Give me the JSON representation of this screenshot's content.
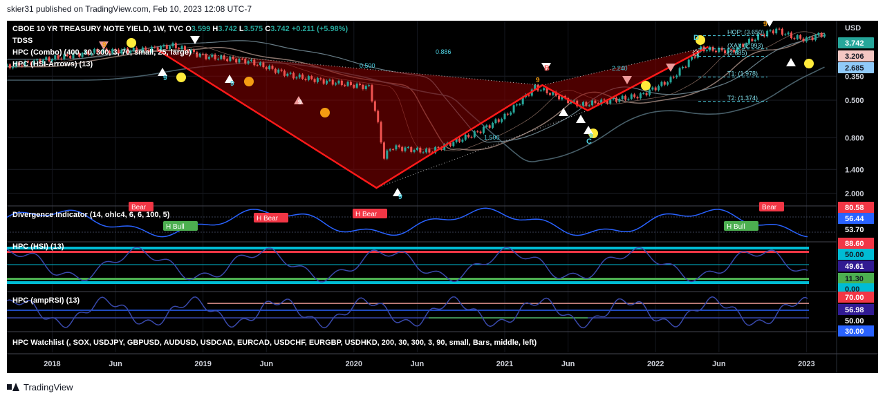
{
  "header": {
    "published": "skier31 published on TradingView.com, Feb 10, 2023 12:08 UTC-7"
  },
  "footer": {
    "brand": "TradingView"
  },
  "main_pane": {
    "title_prefix": "CBOE 10 YR TREASURY NOTE YIELD, 1W, TVC",
    "ohlc": [
      {
        "k": "O",
        "v": "3.599"
      },
      {
        "k": "H",
        "v": "3.742"
      },
      {
        "k": "L",
        "v": "3.575"
      },
      {
        "k": "C",
        "v": "3.742"
      }
    ],
    "change": "+0.211 (+5.98%)",
    "indicators": [
      "TDSS",
      "HPC (Combo) (400, 30, 300, 3, 70, small, 25, large)",
      "HPC (HSI-Arrows) (13)"
    ],
    "currency": "USD",
    "price_ticks": [
      "2.000",
      "1.400",
      "0.800",
      "0.500",
      "0.350"
    ],
    "badges": [
      {
        "text": "3.742",
        "bg": "#26a69a",
        "fg": "#ffffff"
      },
      {
        "text": "3.206",
        "bg": "#f4c7c3",
        "fg": "#131722"
      },
      {
        "text": "2.685",
        "bg": "#90caf9",
        "fg": "#131722"
      }
    ],
    "fib_labels": [
      {
        "text": "0.886"
      },
      {
        "text": "0.500"
      },
      {
        "text": "2.240"
      },
      {
        "text": "1.500"
      }
    ],
    "targets": [
      "HOP: (3.650)",
      "(XA): (2.993)",
      "(2.685)",
      "T1: (1.978)",
      "T2: (1.374)"
    ],
    "point_labels": [
      "B",
      "D",
      "C"
    ],
    "count_label": "9"
  },
  "divergence_pane": {
    "title": "Divergence Indicator (14, ohlc4, 6, 6, 100, 5)",
    "badges": [
      {
        "text": "80.58",
        "bg": "#f23645",
        "fg": "#ffffff"
      },
      {
        "text": "56.44",
        "bg": "#2962ff",
        "fg": "#ffffff"
      },
      {
        "text": "53.70",
        "bg": "#000000",
        "fg": "#ffffff"
      }
    ],
    "labels": [
      {
        "text": "H Bull",
        "type": "bull"
      },
      {
        "text": "H Bear",
        "type": "bear"
      },
      {
        "text": "H Bear",
        "type": "bear"
      },
      {
        "text": "H Bull",
        "type": "bull"
      },
      {
        "text": "Bear",
        "type": "bear"
      },
      {
        "text": "Bear",
        "type": "bear"
      }
    ]
  },
  "hsi_pane": {
    "title": "HPC (HSI) (13)",
    "badges": [
      {
        "text": "88.60",
        "bg": "#f23645",
        "fg": "#ffffff"
      },
      {
        "text": "50.00",
        "bg": "#00bcd4",
        "fg": "#131722"
      },
      {
        "text": "49.61",
        "bg": "#311b92",
        "fg": "#ffffff"
      },
      {
        "text": "11.30",
        "bg": "#4caf50",
        "fg": "#131722"
      },
      {
        "text": "0.00",
        "bg": "#00bcd4",
        "fg": "#131722"
      }
    ]
  },
  "amprsi_pane": {
    "title": "HPC (ampRSI) (13)",
    "badges": [
      {
        "text": "70.00",
        "bg": "#f23645",
        "fg": "#ffffff"
      },
      {
        "text": "56.98",
        "bg": "#311b92",
        "fg": "#ffffff"
      },
      {
        "text": "50.00",
        "bg": "#000000",
        "fg": "#ffffff"
      },
      {
        "text": "30.00",
        "bg": "#2962ff",
        "fg": "#ffffff"
      }
    ]
  },
  "watchlist_pane": {
    "title": "HPC Watchlist (, SOX, USDJPY, GBPUSD, AUDUSD, USDCAD, EURCAD, USDCHF, EURGBP, USDHKD, 200, 30, 300, 3, 90, small, Bars, middle, left)"
  },
  "chart_data": {
    "type": "line",
    "scale": "log",
    "ylabel": "USD",
    "yticks": [
      0.35,
      0.5,
      0.8,
      1.4,
      2.0
    ],
    "ylim": [
      0.3,
      4.2
    ],
    "x_ticks": [
      "2018",
      "Jun",
      "2019",
      "Jun",
      "2020",
      "Jun",
      "2021",
      "Jun",
      "2022",
      "Jun",
      "2023"
    ],
    "x": [
      2017.7,
      2018.0,
      2018.3,
      2018.6,
      2018.8,
      2019.0,
      2019.3,
      2019.6,
      2019.9,
      2020.1,
      2020.15,
      2020.2,
      2020.25,
      2020.5,
      2020.8,
      2021.0,
      2021.2,
      2021.5,
      2021.7,
      2021.9,
      2022.1,
      2022.3,
      2022.5,
      2022.7,
      2022.8,
      2022.9,
      2023.0,
      2023.1
    ],
    "y": [
      2.3,
      2.6,
      2.9,
      2.95,
      3.15,
      2.7,
      2.5,
      2.0,
      1.8,
      1.7,
      1.1,
      0.6,
      0.7,
      0.65,
      0.85,
      1.1,
      1.7,
      1.3,
      1.4,
      1.5,
      1.9,
      3.0,
      2.9,
      3.7,
      4.0,
      3.6,
      3.45,
      3.742
    ],
    "pattern": {
      "x": [
        2018.7,
        2020.15,
        2021.25,
        2021.55,
        2022.35
      ],
      "y": [
        2.95,
        0.38,
        1.75,
        1.2,
        3.1
      ]
    },
    "last_value": 3.742
  }
}
